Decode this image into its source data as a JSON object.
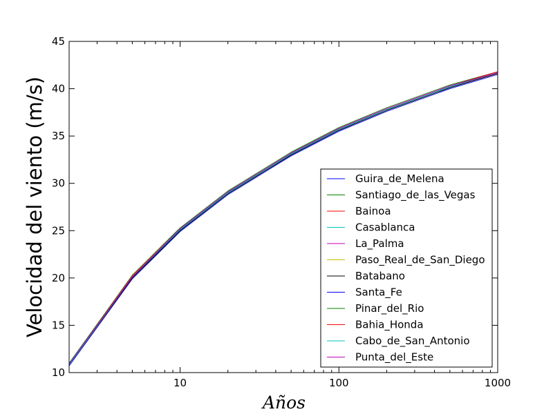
{
  "chart_data": {
    "type": "line",
    "title": "",
    "xlabel": "Años",
    "ylabel": "Velocidad del viento (m/s)",
    "xscale": "log",
    "xlim": [
      2,
      1000
    ],
    "ylim": [
      10,
      45
    ],
    "xticks": [
      10,
      100,
      1000
    ],
    "xtick_labels": [
      "10",
      "100",
      "1000"
    ],
    "yticks": [
      10,
      15,
      20,
      25,
      30,
      35,
      40,
      45
    ],
    "ytick_labels": [
      "10",
      "15",
      "20",
      "25",
      "30",
      "35",
      "40",
      "45"
    ],
    "grid": false,
    "legend_position": "lower-right",
    "x": [
      2,
      5,
      10,
      20,
      25,
      50,
      100,
      200,
      500,
      1000
    ],
    "series": [
      {
        "name": "Guira_de_Melena",
        "color": "#0000ff",
        "values": [
          10.7,
          19.9,
          24.9,
          28.8,
          29.8,
          32.9,
          35.5,
          37.6,
          40.0,
          41.5
        ]
      },
      {
        "name": "Santiago_de_las_Vegas",
        "color": "#008000",
        "values": [
          10.8,
          20.0,
          25.0,
          28.9,
          29.9,
          33.0,
          35.6,
          37.7,
          40.1,
          41.6
        ]
      },
      {
        "name": "Bainoa",
        "color": "#ff0000",
        "values": [
          10.8,
          20.0,
          25.1,
          29.0,
          30.0,
          33.1,
          35.7,
          37.8,
          40.2,
          41.6
        ]
      },
      {
        "name": "Casablanca",
        "color": "#00bfbf",
        "values": [
          10.9,
          20.1,
          25.1,
          29.0,
          30.0,
          33.1,
          35.7,
          37.8,
          40.2,
          41.7
        ]
      },
      {
        "name": "La_Palma",
        "color": "#bf00bf",
        "values": [
          10.9,
          20.1,
          25.2,
          29.1,
          30.1,
          33.2,
          35.8,
          37.9,
          40.3,
          41.7
        ]
      },
      {
        "name": "Paso_Real_de_San_Diego",
        "color": "#bfbf00",
        "values": [
          10.9,
          20.2,
          25.2,
          29.1,
          30.1,
          33.2,
          35.8,
          37.9,
          40.3,
          41.8
        ]
      },
      {
        "name": "Batabano",
        "color": "#000000",
        "values": [
          10.8,
          20.0,
          25.0,
          28.9,
          29.9,
          33.0,
          35.6,
          37.7,
          40.1,
          41.6
        ]
      },
      {
        "name": "Santa_Fe",
        "color": "#0000ff",
        "values": [
          10.8,
          20.1,
          25.1,
          29.0,
          30.0,
          33.1,
          35.7,
          37.8,
          40.2,
          41.7
        ]
      },
      {
        "name": "Pinar_del_Rio",
        "color": "#008000",
        "values": [
          11.0,
          20.3,
          25.3,
          29.2,
          30.2,
          33.3,
          35.9,
          38.0,
          40.4,
          41.8
        ]
      },
      {
        "name": "Bahia_Honda",
        "color": "#ff0000",
        "values": [
          10.9,
          20.2,
          25.2,
          29.1,
          30.1,
          33.2,
          35.8,
          37.9,
          40.3,
          41.8
        ]
      },
      {
        "name": "Cabo_de_San_Antonio",
        "color": "#00bfbf",
        "values": [
          10.8,
          20.1,
          25.1,
          29.0,
          30.0,
          33.1,
          35.7,
          37.8,
          40.2,
          41.7
        ]
      },
      {
        "name": "Punta_del_Este",
        "color": "#bf00bf",
        "values": [
          10.9,
          20.1,
          25.2,
          29.1,
          30.1,
          33.2,
          35.8,
          37.9,
          40.3,
          41.7
        ]
      }
    ]
  }
}
